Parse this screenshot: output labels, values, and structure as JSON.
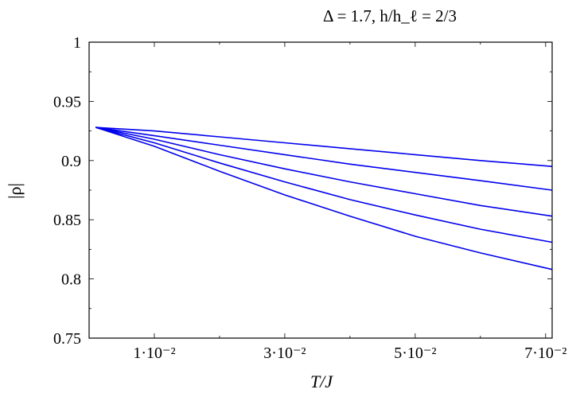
{
  "chart_data": {
    "type": "line",
    "title": "Δ = 1.7, h/h_ℓ = 2/3",
    "xlabel": "T/J",
    "ylabel": "|ρ|",
    "xlim": [
      0.0,
      0.071
    ],
    "ylim": [
      0.75,
      1.0
    ],
    "x_ticks": [
      {
        "value": 0.01,
        "label": "1·10⁻²"
      },
      {
        "value": 0.03,
        "label": "3·10⁻²"
      },
      {
        "value": 0.05,
        "label": "5·10⁻²"
      },
      {
        "value": 0.07,
        "label": "7·10⁻²"
      }
    ],
    "y_ticks": [
      {
        "value": 0.75,
        "label": "0.75"
      },
      {
        "value": 0.8,
        "label": "0.8"
      },
      {
        "value": 0.85,
        "label": "0.85"
      },
      {
        "value": 0.9,
        "label": "0.9"
      },
      {
        "value": 0.95,
        "label": "0.95"
      },
      {
        "value": 1.0,
        "label": "1"
      }
    ],
    "grid": false,
    "line_color": "#0000ee",
    "series": [
      {
        "x": [
          0.001,
          0.01,
          0.02,
          0.03,
          0.04,
          0.05,
          0.06,
          0.071
        ],
        "y": [
          0.928,
          0.925,
          0.92,
          0.915,
          0.91,
          0.905,
          0.9,
          0.895
        ]
      },
      {
        "x": [
          0.001,
          0.01,
          0.02,
          0.03,
          0.04,
          0.05,
          0.06,
          0.071
        ],
        "y": [
          0.928,
          0.921,
          0.913,
          0.905,
          0.897,
          0.89,
          0.883,
          0.875
        ]
      },
      {
        "x": [
          0.001,
          0.01,
          0.02,
          0.03,
          0.04,
          0.05,
          0.06,
          0.071
        ],
        "y": [
          0.928,
          0.918,
          0.905,
          0.893,
          0.882,
          0.872,
          0.862,
          0.853
        ]
      },
      {
        "x": [
          0.001,
          0.01,
          0.02,
          0.03,
          0.04,
          0.05,
          0.06,
          0.071
        ],
        "y": [
          0.928,
          0.915,
          0.898,
          0.882,
          0.867,
          0.854,
          0.842,
          0.831
        ]
      },
      {
        "x": [
          0.001,
          0.01,
          0.02,
          0.03,
          0.04,
          0.05,
          0.06,
          0.071
        ],
        "y": [
          0.928,
          0.912,
          0.891,
          0.871,
          0.853,
          0.836,
          0.822,
          0.808
        ]
      }
    ]
  }
}
